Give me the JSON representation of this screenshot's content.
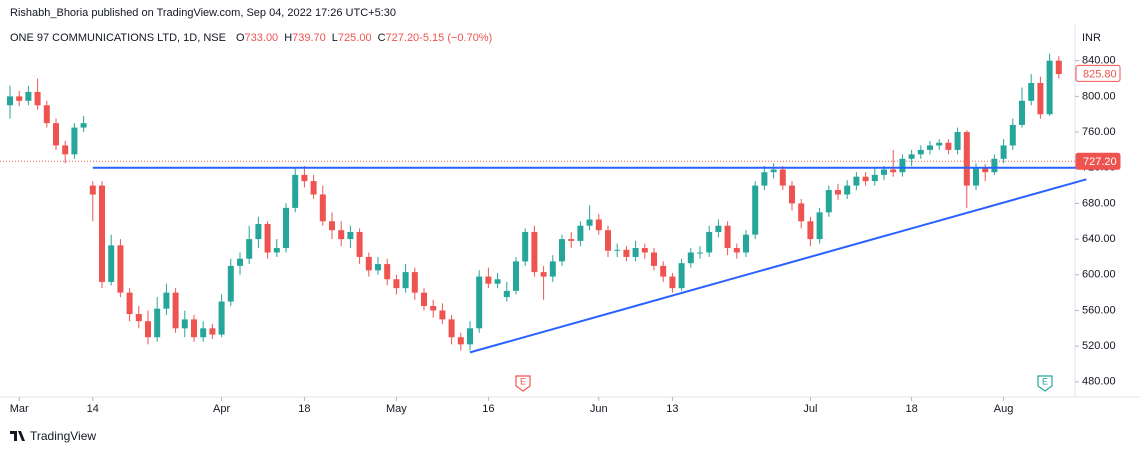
{
  "chart_data": {
    "type": "candlestick",
    "header": "Rishabh_Bhoria published on TradingView.com, Sep 04, 2022 17:26 UTC+5:30",
    "symbol": "ONE 97 COMMUNICATIONS LTD, 1D, NSE",
    "ohlc_legend": [
      {
        "key": "O",
        "value": "733.00"
      },
      {
        "key": "H",
        "value": "739.70"
      },
      {
        "key": "L",
        "value": "725.00"
      },
      {
        "key": "C",
        "value": "727.20"
      },
      {
        "key": "",
        "value": "-5.15 (−0.70%)"
      }
    ],
    "currency": "INR",
    "footer": "TradingView",
    "up_color": "#26a69a",
    "down_color": "#ef5350",
    "open": [
      790,
      800,
      795,
      805,
      790,
      770,
      745,
      735,
      765,
      700,
      700,
      592,
      633,
      580,
      556,
      548,
      530,
      562,
      580,
      540,
      550,
      530,
      540,
      533,
      570,
      610,
      618,
      640,
      657,
      625,
      630,
      675,
      712,
      705,
      690,
      660,
      650,
      640,
      648,
      620,
      605,
      612,
      595,
      585,
      603,
      580,
      565,
      560,
      550,
      530,
      522,
      540,
      598,
      590,
      575,
      582,
      615,
      648,
      603,
      598,
      615,
      640,
      638,
      655,
      662,
      650,
      627,
      628,
      620,
      630,
      625,
      610,
      598,
      585,
      613,
      625,
      625,
      648,
      655,
      630,
      625,
      645,
      700,
      715,
      718,
      700,
      680,
      660,
      640,
      670,
      695,
      690,
      700,
      710,
      705,
      712,
      718,
      715,
      730,
      735,
      740,
      745,
      748,
      740,
      760,
      700,
      720,
      715,
      730,
      745,
      768,
      795,
      815,
      780,
      840
    ],
    "high": [
      812,
      806,
      812,
      820,
      795,
      775,
      750,
      770,
      778,
      705,
      705,
      645,
      640,
      585,
      565,
      560,
      575,
      590,
      585,
      560,
      555,
      548,
      545,
      578,
      618,
      625,
      655,
      665,
      660,
      640,
      680,
      720,
      722,
      712,
      700,
      670,
      660,
      655,
      652,
      625,
      620,
      618,
      600,
      612,
      608,
      585,
      572,
      568,
      555,
      535,
      548,
      605,
      608,
      602,
      592,
      620,
      652,
      655,
      610,
      622,
      645,
      648,
      660,
      678,
      668,
      655,
      635,
      632,
      638,
      635,
      630,
      615,
      602,
      618,
      630,
      632,
      655,
      662,
      660,
      635,
      650,
      705,
      722,
      725,
      722,
      705,
      685,
      665,
      675,
      700,
      702,
      706,
      715,
      715,
      720,
      722,
      740,
      735,
      740,
      745,
      750,
      752,
      752,
      765,
      762,
      725,
      724,
      735,
      752,
      775,
      810,
      825,
      822,
      848,
      845
    ],
    "low": [
      775,
      789,
      790,
      785,
      765,
      740,
      725,
      730,
      760,
      660,
      585,
      588,
      575,
      548,
      540,
      522,
      525,
      555,
      535,
      530,
      525,
      525,
      528,
      530,
      565,
      600,
      612,
      630,
      618,
      620,
      625,
      670,
      698,
      685,
      655,
      640,
      632,
      630,
      612,
      598,
      600,
      588,
      578,
      580,
      572,
      560,
      552,
      545,
      522,
      515,
      515,
      535,
      585,
      585,
      570,
      578,
      610,
      598,
      572,
      592,
      610,
      630,
      632,
      650,
      645,
      620,
      620,
      615,
      615,
      618,
      605,
      592,
      580,
      582,
      608,
      618,
      620,
      642,
      622,
      618,
      620,
      640,
      695,
      708,
      695,
      672,
      652,
      632,
      635,
      665,
      684,
      685,
      695,
      700,
      700,
      706,
      710,
      710,
      722,
      730,
      735,
      740,
      735,
      735,
      675,
      695,
      705,
      712,
      725,
      740,
      765,
      790,
      775,
      778,
      820
    ],
    "close": [
      800,
      795,
      805,
      790,
      770,
      745,
      735,
      765,
      770,
      690,
      592,
      633,
      580,
      556,
      548,
      530,
      562,
      580,
      540,
      550,
      530,
      540,
      533,
      570,
      610,
      618,
      640,
      657,
      625,
      630,
      675,
      712,
      705,
      690,
      660,
      650,
      640,
      648,
      620,
      605,
      612,
      595,
      585,
      603,
      580,
      565,
      560,
      550,
      530,
      522,
      540,
      598,
      590,
      595,
      582,
      615,
      648,
      603,
      598,
      615,
      640,
      638,
      655,
      662,
      650,
      627,
      628,
      620,
      630,
      625,
      610,
      598,
      585,
      613,
      625,
      625,
      648,
      655,
      630,
      625,
      645,
      700,
      715,
      718,
      700,
      680,
      660,
      640,
      670,
      695,
      690,
      700,
      710,
      705,
      712,
      718,
      715,
      730,
      735,
      740,
      745,
      748,
      740,
      760,
      700,
      720,
      715,
      730,
      745,
      768,
      795,
      815,
      780,
      840,
      825
    ],
    "xticks": [
      {
        "value": 1,
        "label": "Mar"
      },
      {
        "value": 9,
        "label": "14"
      },
      {
        "value": 23,
        "label": "Apr"
      },
      {
        "value": 32,
        "label": "18"
      },
      {
        "value": 42,
        "label": "May"
      },
      {
        "value": 52,
        "label": "16"
      },
      {
        "value": 64,
        "label": "Jun"
      },
      {
        "value": 72,
        "label": "13"
      },
      {
        "value": 87,
        "label": "Jul"
      },
      {
        "value": 98,
        "label": "18"
      },
      {
        "value": 108,
        "label": "Aug"
      }
    ],
    "ylim": [
      463,
      880
    ],
    "yticks": [
      {
        "value": 480,
        "label": "480.00"
      },
      {
        "value": 520,
        "label": "520.00"
      },
      {
        "value": 560,
        "label": "560.00"
      },
      {
        "value": 600,
        "label": "600.00"
      },
      {
        "value": 640,
        "label": "640.00"
      },
      {
        "value": 680,
        "label": "680.00"
      },
      {
        "value": 720,
        "label": "720.00"
      },
      {
        "value": 760,
        "label": "760.00"
      },
      {
        "value": 800,
        "label": "800.00"
      },
      {
        "value": 840,
        "label": "840.00"
      }
    ],
    "grid": false,
    "last_price": {
      "value": 727.2,
      "label": "727.20",
      "color": "#ef5350"
    },
    "cursor_price": {
      "value": 825.8,
      "label": "825.80",
      "color": "#ef5350"
    },
    "trendlines": [
      {
        "x": [
          9,
          117
        ],
        "y": [
          720,
          720
        ],
        "color": "#2962ff"
      },
      {
        "x": [
          50,
          117
        ],
        "y": [
          513,
          707
        ],
        "color": "#2962ff"
      }
    ]
  }
}
